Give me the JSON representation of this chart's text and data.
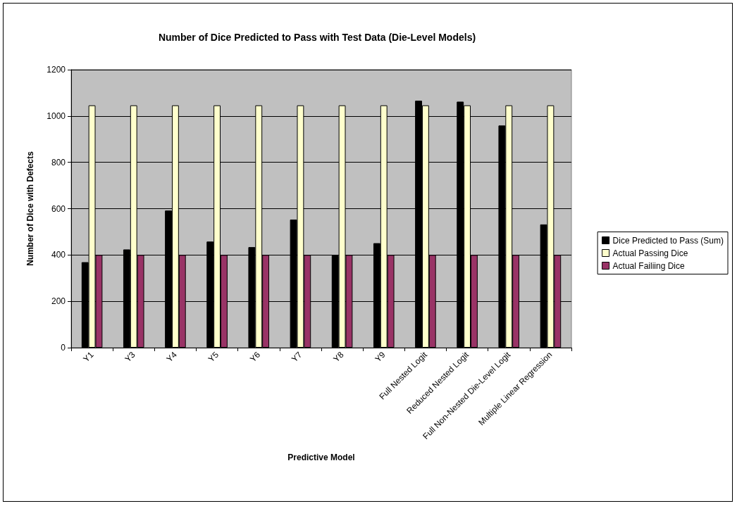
{
  "chart_data": {
    "type": "bar",
    "title": "Number of Dice Predicted to Pass with Test Data (Die-Level Models)",
    "xlabel": "Predictive Model",
    "ylabel": "Number of Dice with Defects",
    "categories": [
      "Y1",
      "Y3",
      "Y4",
      "Y5",
      "Y6",
      "Y7",
      "Y8",
      "Y9",
      "Full Nested Logit",
      "Reduced Nested Logit",
      "Full Non-Nested Die-Level Logit",
      "Multiple Linear Regression"
    ],
    "series": [
      {
        "name": "Dice Predicted to Pass (Sum)",
        "color": "#000000",
        "values": [
          369,
          424,
          592,
          458,
          434,
          553,
          398,
          451,
          1066,
          1062,
          959,
          532
        ]
      },
      {
        "name": "Actual Passing Dice",
        "color": "#ffffcc",
        "values": [
          1046,
          1046,
          1046,
          1046,
          1046,
          1046,
          1046,
          1046,
          1046,
          1046,
          1046,
          1046
        ]
      },
      {
        "name": "Actual Failiing Dice",
        "color": "#993366",
        "values": [
          400,
          400,
          400,
          400,
          400,
          400,
          400,
          400,
          400,
          400,
          400,
          400
        ]
      }
    ],
    "ylim": [
      0,
      1200
    ],
    "yticks": [
      0,
      200,
      400,
      600,
      800,
      1000,
      1200
    ],
    "grid": "y",
    "legend": "right"
  }
}
